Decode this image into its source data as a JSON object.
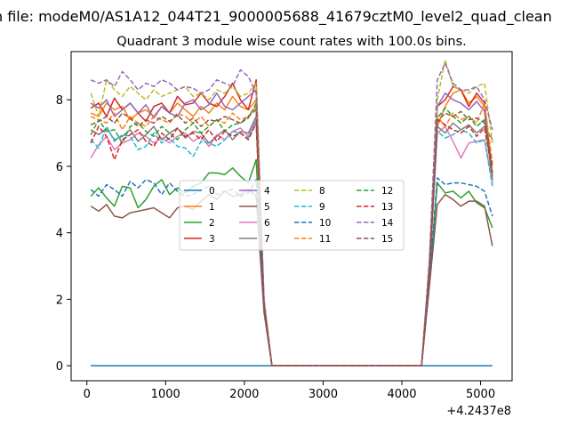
{
  "suptitle": "n file: modeM0/AS1A12_044T21_9000005688_41679cztM0_level2_quad_clean",
  "chart_data": {
    "type": "line",
    "title": "Quadrant 3 module wise count rates with 100.0s bins.",
    "xlabel": "",
    "ylabel": "",
    "x_offset_label": "+4.2437e8",
    "xlim": [
      -200,
      5400
    ],
    "ylim": [
      -0.45,
      9.45
    ],
    "xticks": [
      0,
      1000,
      2000,
      3000,
      4000,
      5000
    ],
    "xtick_labels": [
      "0",
      "1000",
      "2000",
      "3000",
      "4000",
      "5000"
    ],
    "yticks": [
      0,
      2,
      4,
      6,
      8
    ],
    "ytick_labels": [
      "0",
      "2",
      "4",
      "6",
      "8"
    ],
    "grid": false,
    "legend": {
      "location": "center",
      "ncol": 4
    },
    "x": [
      50,
      150,
      250,
      350,
      450,
      550,
      650,
      750,
      850,
      950,
      1050,
      1150,
      1250,
      1350,
      1450,
      1550,
      1650,
      1750,
      1850,
      1950,
      2050,
      2150,
      2250,
      2350,
      2450,
      2550,
      2650,
      2750,
      2850,
      2950,
      3050,
      3150,
      3250,
      3350,
      3450,
      3550,
      3650,
      3750,
      3850,
      3950,
      4050,
      4150,
      4250,
      4350,
      4450,
      4550,
      4650,
      4750,
      4850,
      4950,
      5050,
      5150
    ],
    "series": [
      {
        "name": "0",
        "color": "#1f77b4",
        "dash": "solid",
        "values": [
          0,
          0,
          0,
          0,
          0,
          0,
          0,
          0,
          0,
          0,
          0,
          0,
          0,
          0,
          0,
          0,
          0,
          0,
          0,
          0,
          0,
          0,
          0,
          0,
          0,
          0,
          0,
          0,
          0,
          0,
          0,
          0,
          0,
          0,
          0,
          0,
          0,
          0,
          0,
          0,
          0,
          0,
          0,
          0,
          0,
          0,
          0,
          0,
          0,
          0,
          0,
          0
        ]
      },
      {
        "name": "1",
        "color": "#ff7f0e",
        "dash": "solid",
        "values": [
          7.6,
          7.5,
          7.9,
          7.7,
          7.8,
          7.4,
          7.6,
          7.7,
          7.5,
          7.8,
          7.6,
          7.9,
          7.7,
          7.5,
          7.8,
          7.6,
          7.9,
          7.7,
          8.1,
          7.8,
          7.7,
          8.0,
          1.8,
          0,
          0,
          0,
          0,
          0,
          0,
          0,
          0,
          0,
          0,
          0,
          0,
          0,
          0,
          0,
          0,
          0,
          0,
          0,
          0,
          3.0,
          7.2,
          7.8,
          8.2,
          8.3,
          7.9,
          8.1,
          7.8,
          5.8
        ]
      },
      {
        "name": "2",
        "color": "#2ca02c",
        "dash": "solid",
        "values": [
          5.1,
          5.35,
          5.05,
          4.8,
          5.4,
          5.35,
          4.75,
          5.0,
          5.4,
          5.6,
          5.15,
          5.35,
          5.2,
          5.4,
          5.5,
          5.8,
          5.8,
          5.75,
          5.95,
          5.7,
          5.5,
          6.2,
          1.7,
          0,
          0,
          0,
          0,
          0,
          0,
          0,
          0,
          0,
          0,
          0,
          0,
          0,
          0,
          0,
          0,
          0,
          0,
          0,
          0,
          2.5,
          5.5,
          5.2,
          5.25,
          5.05,
          5.25,
          4.9,
          4.75,
          4.15
        ]
      },
      {
        "name": "3",
        "color": "#d62728",
        "dash": "solid",
        "values": [
          7.75,
          7.9,
          7.5,
          8.05,
          7.7,
          7.9,
          7.6,
          7.35,
          7.8,
          7.9,
          7.6,
          8.1,
          7.85,
          7.9,
          8.2,
          7.9,
          7.8,
          8.1,
          8.5,
          8.0,
          7.7,
          8.6,
          1.9,
          0,
          0,
          0,
          0,
          0,
          0,
          0,
          0,
          0,
          0,
          0,
          0,
          0,
          0,
          0,
          0,
          0,
          0,
          0,
          0,
          3.0,
          7.8,
          8.0,
          8.4,
          8.3,
          7.8,
          8.2,
          7.9,
          5.6
        ]
      },
      {
        "name": "4",
        "color": "#9467bd",
        "dash": "solid",
        "values": [
          7.9,
          7.75,
          8.0,
          7.5,
          7.7,
          7.9,
          7.6,
          7.85,
          7.45,
          7.8,
          7.6,
          7.5,
          7.9,
          8.0,
          7.7,
          7.85,
          8.2,
          7.8,
          7.7,
          7.9,
          8.1,
          8.3,
          1.9,
          0,
          0,
          0,
          0,
          0,
          0,
          0,
          0,
          0,
          0,
          0,
          0,
          0,
          0,
          0,
          0,
          0,
          0,
          0,
          0,
          3.1,
          7.8,
          8.2,
          8.0,
          7.9,
          7.7,
          7.95,
          7.65,
          5.5
        ]
      },
      {
        "name": "5",
        "color": "#8c564b",
        "dash": "solid",
        "values": [
          4.8,
          4.65,
          4.85,
          4.5,
          4.45,
          4.6,
          4.65,
          4.7,
          4.75,
          4.6,
          4.45,
          4.75,
          4.8,
          4.7,
          4.95,
          5.15,
          5.0,
          5.25,
          5.1,
          5.15,
          5.3,
          5.1,
          1.6,
          0,
          0,
          0,
          0,
          0,
          0,
          0,
          0,
          0,
          0,
          0,
          0,
          0,
          0,
          0,
          0,
          0,
          0,
          0,
          0,
          2.4,
          4.85,
          5.15,
          5.0,
          4.8,
          4.95,
          4.95,
          4.8,
          3.6
        ]
      },
      {
        "name": "6",
        "color": "#e377c2",
        "dash": "solid",
        "values": [
          6.25,
          6.65,
          6.9,
          6.5,
          6.7,
          6.8,
          7.0,
          6.9,
          6.7,
          6.85,
          6.7,
          6.9,
          7.0,
          6.75,
          6.9,
          6.6,
          6.95,
          6.8,
          7.05,
          7.15,
          6.9,
          7.4,
          1.8,
          0,
          0,
          0,
          0,
          0,
          0,
          0,
          0,
          0,
          0,
          0,
          0,
          0,
          0,
          0,
          0,
          0,
          0,
          0,
          0,
          2.8,
          7.0,
          7.2,
          6.75,
          6.25,
          6.7,
          6.75,
          6.8,
          5.5
        ]
      },
      {
        "name": "7",
        "color": "#7f7f7f",
        "dash": "solid",
        "values": [
          7.1,
          6.95,
          7.15,
          6.8,
          6.9,
          7.1,
          6.75,
          6.95,
          7.2,
          6.8,
          7.0,
          7.15,
          6.85,
          7.05,
          7.0,
          6.7,
          6.9,
          7.1,
          6.8,
          7.05,
          7.0,
          7.5,
          1.8,
          0,
          0,
          0,
          0,
          0,
          0,
          0,
          0,
          0,
          0,
          0,
          0,
          0,
          0,
          0,
          0,
          0,
          0,
          0,
          0,
          2.9,
          7.2,
          7.0,
          7.3,
          7.1,
          7.25,
          7.0,
          7.2,
          6.8
        ]
      },
      {
        "name": "8",
        "color": "#bcbd22",
        "dash": "dashed",
        "values": [
          8.2,
          7.5,
          8.6,
          8.3,
          8.1,
          8.4,
          8.2,
          8.0,
          8.3,
          8.1,
          8.2,
          8.3,
          8.4,
          8.1,
          8.2,
          8.0,
          8.3,
          8.2,
          8.4,
          8.1,
          8.2,
          8.5,
          2.0,
          0,
          0,
          0,
          0,
          0,
          0,
          0,
          0,
          0,
          0,
          0,
          0,
          0,
          0,
          0,
          0,
          0,
          0,
          0,
          0,
          3.2,
          8.0,
          9.2,
          8.4,
          8.3,
          8.2,
          8.4,
          8.5,
          6.7
        ]
      },
      {
        "name": "9",
        "color": "#17becf",
        "dash": "dashed",
        "values": [
          6.8,
          6.55,
          7.2,
          6.75,
          6.95,
          6.9,
          6.5,
          6.6,
          7.0,
          6.7,
          6.85,
          6.6,
          6.55,
          6.3,
          6.75,
          6.7,
          6.6,
          6.8,
          7.05,
          7.0,
          6.85,
          7.35,
          1.8,
          0,
          0,
          0,
          0,
          0,
          0,
          0,
          0,
          0,
          0,
          0,
          0,
          0,
          0,
          0,
          0,
          0,
          0,
          0,
          0,
          2.8,
          7.05,
          6.85,
          6.95,
          7.1,
          7.0,
          6.7,
          6.8,
          5.4
        ]
      },
      {
        "name": "10",
        "color": "#1f77b4",
        "dash": "dashed",
        "values": [
          5.3,
          5.1,
          5.45,
          5.3,
          5.1,
          5.55,
          5.35,
          5.6,
          5.5,
          5.15,
          5.5,
          5.25,
          5.1,
          5.15,
          5.3,
          5.4,
          5.15,
          5.25,
          5.3,
          5.1,
          5.2,
          5.6,
          1.7,
          0,
          0,
          0,
          0,
          0,
          0,
          0,
          0,
          0,
          0,
          0,
          0,
          0,
          0,
          0,
          0,
          0,
          0,
          0,
          0,
          2.6,
          5.65,
          5.45,
          5.5,
          5.5,
          5.45,
          5.4,
          5.25,
          4.5
        ]
      },
      {
        "name": "11",
        "color": "#ff7f0e",
        "dash": "dashed",
        "values": [
          7.5,
          7.4,
          7.3,
          7.6,
          7.1,
          7.5,
          7.3,
          7.2,
          7.5,
          7.4,
          7.3,
          7.6,
          7.5,
          7.3,
          7.5,
          7.2,
          7.4,
          7.3,
          7.6,
          7.4,
          7.5,
          7.8,
          1.8,
          0,
          0,
          0,
          0,
          0,
          0,
          0,
          0,
          0,
          0,
          0,
          0,
          0,
          0,
          0,
          0,
          0,
          0,
          0,
          0,
          2.9,
          7.5,
          7.2,
          7.6,
          7.4,
          7.5,
          7.3,
          7.9,
          6.1
        ]
      },
      {
        "name": "12",
        "color": "#2ca02c",
        "dash": "dashed",
        "values": [
          6.95,
          7.4,
          7.05,
          7.1,
          6.7,
          7.2,
          7.3,
          7.05,
          6.9,
          7.2,
          7.0,
          6.8,
          7.1,
          7.3,
          7.0,
          7.2,
          7.4,
          7.05,
          7.25,
          7.3,
          7.45,
          7.9,
          1.8,
          0,
          0,
          0,
          0,
          0,
          0,
          0,
          0,
          0,
          0,
          0,
          0,
          0,
          0,
          0,
          0,
          0,
          0,
          0,
          0,
          2.9,
          7.45,
          7.75,
          7.5,
          7.3,
          7.5,
          7.2,
          7.4,
          5.7
        ]
      },
      {
        "name": "13",
        "color": "#d62728",
        "dash": "dashed",
        "values": [
          6.7,
          7.2,
          6.9,
          6.2,
          6.8,
          6.95,
          7.1,
          6.75,
          6.6,
          7.0,
          6.8,
          7.15,
          6.9,
          7.0,
          6.8,
          7.1,
          6.75,
          7.05,
          6.9,
          7.0,
          6.8,
          7.3,
          1.8,
          0,
          0,
          0,
          0,
          0,
          0,
          0,
          0,
          0,
          0,
          0,
          0,
          0,
          0,
          0,
          0,
          0,
          0,
          0,
          0,
          2.8,
          7.4,
          7.25,
          7.1,
          7.0,
          7.2,
          6.9,
          7.15,
          5.8
        ]
      },
      {
        "name": "14",
        "color": "#9467bd",
        "dash": "dashed",
        "values": [
          8.6,
          8.5,
          8.6,
          8.4,
          8.85,
          8.6,
          8.3,
          8.5,
          8.4,
          8.6,
          8.5,
          8.3,
          8.4,
          8.35,
          8.2,
          8.3,
          8.6,
          8.5,
          8.4,
          8.9,
          8.7,
          8.2,
          2.0,
          0,
          0,
          0,
          0,
          0,
          0,
          0,
          0,
          0,
          0,
          0,
          0,
          0,
          0,
          0,
          0,
          0,
          0,
          0,
          0,
          3.2,
          8.6,
          9.1,
          8.5,
          8.3,
          8.3,
          8.4,
          8.0,
          7.1
        ]
      },
      {
        "name": "15",
        "color": "#8c564b",
        "dash": "dashed",
        "values": [
          7.25,
          7.35,
          7.5,
          7.3,
          7.6,
          7.45,
          7.2,
          7.4,
          7.3,
          7.5,
          7.35,
          7.55,
          7.3,
          7.45,
          7.2,
          7.4,
          7.35,
          7.5,
          7.4,
          7.3,
          7.5,
          7.7,
          1.8,
          0,
          0,
          0,
          0,
          0,
          0,
          0,
          0,
          0,
          0,
          0,
          0,
          0,
          0,
          0,
          0,
          0,
          0,
          0,
          0,
          2.9,
          7.35,
          7.6,
          7.5,
          7.65,
          7.4,
          7.45,
          7.3,
          6.0
        ]
      }
    ]
  }
}
